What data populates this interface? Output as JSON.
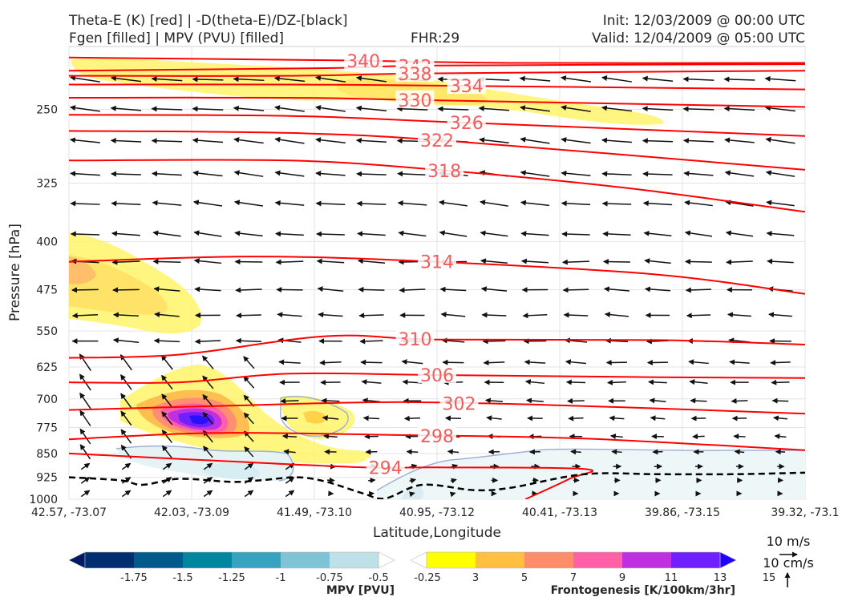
{
  "header": {
    "title_left_1": "Theta-E (K) [red] | -D(theta-E)/DZ-[black]",
    "title_left_2": "Fgen [filled] | MPV (PVU) [filled]",
    "fhr": "FHR:29",
    "init": "Init: 12/03/2009 @ 00:00 UTC",
    "valid": "Valid: 12/04/2009 @ 05:00 UTC"
  },
  "chart_data": {
    "type": "cross-section",
    "xlabel": "Latitude,Longitude",
    "ylabel": "Pressure [hPa]",
    "x_ticks": [
      "42.57, -73.07",
      "42.03, -73.09",
      "41.49, -73.10",
      "40.95, -73.12",
      "40.41, -73.13",
      "39.86, -73.15",
      "39.32, -73.1"
    ],
    "y_ticks": [
      250,
      325,
      400,
      475,
      550,
      625,
      700,
      775,
      850,
      925,
      1000
    ],
    "ylim": [
      1000,
      200
    ],
    "y_scale": "log-pressure",
    "grid": true,
    "theta_e_contours": {
      "color": "#ff0000",
      "levels": [
        {
          "label": "340",
          "points": [
            [
              0.0,
              208
            ],
            [
              0.35,
              210
            ],
            [
              0.6,
              212
            ],
            [
              1.0,
              212
            ]
          ]
        },
        {
          "label": "342",
          "points": [
            [
              0.0,
              218
            ],
            [
              0.35,
              216
            ],
            [
              0.5,
              214
            ],
            [
              1.0,
              213
            ]
          ]
        },
        {
          "label": "338",
          "points": [
            [
              0.0,
              222
            ],
            [
              0.3,
              222
            ],
            [
              0.5,
              220
            ],
            [
              1.0,
              218
            ]
          ]
        },
        {
          "label": "334",
          "points": [
            [
              0.0,
              229
            ],
            [
              0.3,
              229
            ],
            [
              0.53,
              230
            ],
            [
              1.0,
              233
            ]
          ]
        },
        {
          "label": "330",
          "points": [
            [
              0.0,
              240
            ],
            [
              0.3,
              240
            ],
            [
              0.48,
              242
            ],
            [
              1.0,
              248
            ]
          ]
        },
        {
          "label": "326",
          "points": [
            [
              0.0,
              255
            ],
            [
              0.3,
              256
            ],
            [
              0.53,
              262
            ],
            [
              1.0,
              275
            ]
          ]
        },
        {
          "label": "322",
          "points": [
            [
              0.0,
              270
            ],
            [
              0.3,
              272
            ],
            [
              0.52,
              280
            ],
            [
              1.0,
              310
            ]
          ]
        },
        {
          "label": "318",
          "points": [
            [
              0.0,
              300
            ],
            [
              0.3,
              300
            ],
            [
              0.5,
              310
            ],
            [
              0.75,
              330
            ],
            [
              1.0,
              360
            ]
          ]
        },
        {
          "label": "314",
          "points": [
            [
              0.0,
              430
            ],
            [
              0.25,
              422
            ],
            [
              0.5,
              430
            ],
            [
              0.8,
              450
            ],
            [
              1.0,
              482
            ]
          ]
        },
        {
          "label": "310",
          "points": [
            [
              0.0,
              605
            ],
            [
              0.15,
              598
            ],
            [
              0.35,
              560
            ],
            [
              0.5,
              567
            ],
            [
              0.8,
              568
            ],
            [
              1.0,
              577
            ]
          ]
        },
        {
          "label": "306",
          "points": [
            [
              0.0,
              660
            ],
            [
              0.15,
              660
            ],
            [
              0.3,
              640
            ],
            [
              0.5,
              643
            ],
            [
              0.8,
              648
            ],
            [
              1.0,
              650
            ]
          ]
        },
        {
          "label": "302",
          "points": [
            [
              0.0,
              728
            ],
            [
              0.2,
              718
            ],
            [
              0.45,
              708
            ],
            [
              0.7,
              718
            ],
            [
              1.0,
              738
            ]
          ]
        },
        {
          "label": "298",
          "points": [
            [
              0.0,
              808
            ],
            [
              0.2,
              790
            ],
            [
              0.45,
              796
            ],
            [
              0.7,
              806
            ],
            [
              1.0,
              840
            ]
          ]
        },
        {
          "label": "294",
          "points": [
            [
              0.0,
              850
            ],
            [
              0.2,
              872
            ],
            [
              0.4,
              893
            ],
            [
              0.5,
              893
            ],
            [
              0.7,
              898
            ],
            [
              0.68,
              930
            ],
            [
              0.62,
              1000
            ]
          ]
        }
      ]
    },
    "stability_contour_dashed": {
      "color": "#000000",
      "points": [
        [
          0.0,
          925
        ],
        [
          0.07,
          935
        ],
        [
          0.1,
          950
        ],
        [
          0.15,
          930
        ],
        [
          0.22,
          940
        ],
        [
          0.26,
          935
        ],
        [
          0.31,
          925
        ],
        [
          0.35,
          940
        ],
        [
          0.4,
          980
        ],
        [
          0.43,
          997
        ],
        [
          0.48,
          950
        ],
        [
          0.55,
          968
        ],
        [
          0.6,
          960
        ],
        [
          0.7,
          915
        ],
        [
          0.8,
          915
        ],
        [
          0.9,
          915
        ],
        [
          1.0,
          910
        ]
      ]
    },
    "mpv_filled": {
      "label": "MPV [PVU]",
      "levels": [
        -1.75,
        -1.5,
        -1.25,
        -1.0,
        -0.75,
        -0.5,
        -0.25
      ],
      "colors": [
        "#001a66",
        "#002e70",
        "#005a8a",
        "#00879f",
        "#36a3bf",
        "#7fc3d6",
        "#bfe0e6",
        "#ffffff"
      ]
    },
    "frontogenesis_filled": {
      "label": "Frontogenesis [K/100km/3hr]",
      "levels": [
        3,
        5,
        7,
        9,
        11,
        13,
        15
      ],
      "colors": [
        "#ffffff",
        "#ffff00",
        "#ffc040",
        "#ff8c6a",
        "#ff60a8",
        "#c030e0",
        "#7020ff",
        "#2000ff"
      ]
    },
    "wind_quiver": {
      "color": "#111111",
      "horizontal_reference": "10 m/s",
      "vertical_reference": "10 cm/s"
    }
  },
  "colors": {
    "theta_e": "#ff0000",
    "theta_e_label": "#f25c5c",
    "background": "#ffffff",
    "grid": "#e3e3e3"
  }
}
